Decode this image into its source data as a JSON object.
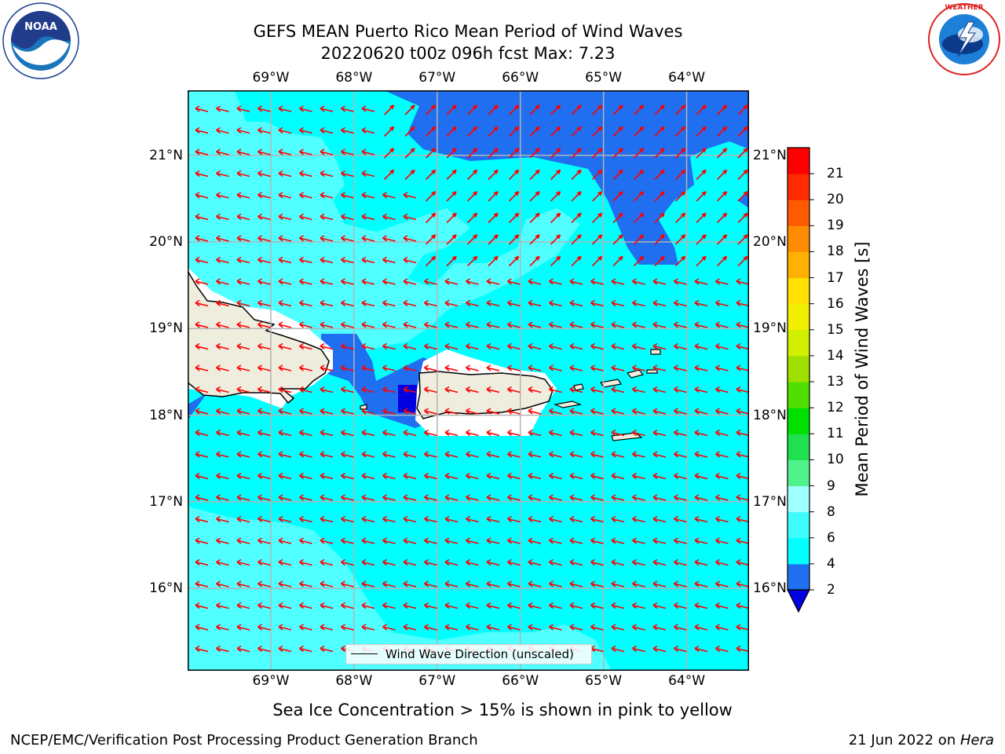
{
  "header": {
    "title_line1": "GEFS MEAN Puerto Rico Mean Period of Wind Waves",
    "title_line2": "20220620 t00z 096h fcst   Max: 7.23"
  },
  "logos": {
    "left": {
      "name": "noaa-logo",
      "text": "NOAA"
    },
    "right": {
      "name": "national-weather-service-logo",
      "text": "NATIONAL WEATHER SERVICE"
    }
  },
  "map": {
    "lon_labels": [
      "69°W",
      "68°W",
      "67°W",
      "66°W",
      "65°W",
      "64°W"
    ],
    "lat_labels": [
      "21°N",
      "20°N",
      "19°N",
      "18°N",
      "17°N",
      "16°N"
    ],
    "lon_values": [
      -69,
      -68,
      -67,
      -66,
      -65,
      -64
    ],
    "lat_values": [
      21,
      20,
      19,
      18,
      17,
      16
    ],
    "extent": {
      "lon_min": -70.0,
      "lon_max": -63.25,
      "lat_min": 15.05,
      "lat_max": 21.75
    },
    "gridlines": true,
    "arrow_color": "#ff0000",
    "land_color": "#efedde",
    "legend_text": "Wind Wave Direction (unscaled)"
  },
  "colorbar": {
    "label": "Mean Period of Wind Waves [s]",
    "ticks": [
      "2",
      "4",
      "6",
      "8",
      "9",
      "10",
      "11",
      "12",
      "13",
      "14",
      "15",
      "16",
      "17",
      "18",
      "19",
      "20",
      "21"
    ],
    "colors": [
      "#1f6ff0",
      "#00ffff",
      "#3cfcfc",
      "#a0ffff",
      "#50f28c",
      "#20e050",
      "#00e000",
      "#50e000",
      "#a0e000",
      "#d0f000",
      "#f0f000",
      "#ffe000",
      "#ffb000",
      "#ff8c00",
      "#ff5a00",
      "#ff2a00",
      "#ff0000"
    ],
    "extend_color": "#0000e0"
  },
  "note": "Sea Ice Concentration > 15% is shown in pink to yellow",
  "footer": {
    "left": "NCEP/EMC/Verification Post Processing Product Generation Branch",
    "right_date": "21 Jun 2022 on ",
    "right_host": "Hera"
  }
}
